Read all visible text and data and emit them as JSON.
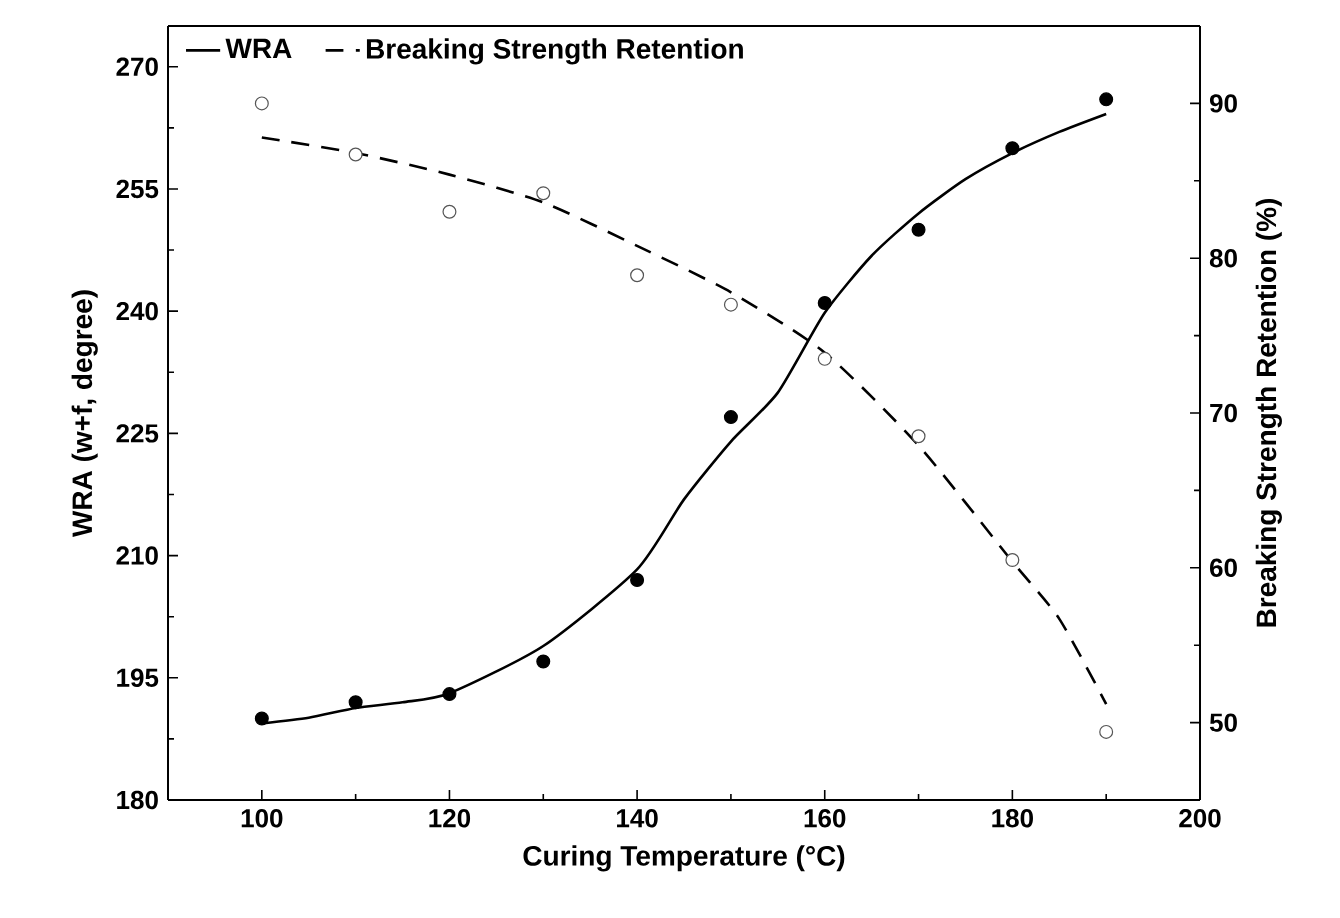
{
  "chart_data": {
    "type": "scatter",
    "xlabel": "Curing Temperature (°C)",
    "ylabel": "WRA (w+f, degree)",
    "y2label": "Breaking Strength Retention (%)",
    "xlim": [
      90,
      200
    ],
    "xticks": [
      100,
      120,
      140,
      160,
      180,
      200
    ],
    "ylim": [
      180,
      275
    ],
    "yticks": [
      180,
      195,
      210,
      225,
      240,
      255,
      270
    ],
    "y2lim": [
      45,
      95
    ],
    "y2ticks": [
      50,
      60,
      70,
      80,
      90
    ],
    "legend": "top left",
    "grid": false,
    "series": [
      {
        "name": "WRA",
        "type": "line",
        "color": "#000000",
        "line_style": "solid",
        "marker": "none",
        "x": [
          100,
          105,
          110,
          115,
          120,
          130,
          140,
          145,
          150,
          155,
          160,
          165,
          170,
          175,
          180,
          185,
          190
        ],
        "values": [
          189.4,
          190.1,
          191.3,
          192,
          193.1,
          198.9,
          208.3,
          216.9,
          224,
          230,
          239.8,
          246.8,
          252,
          256.2,
          259.4,
          262,
          264.2
        ]
      },
      {
        "name": "Breaking Strength Retention",
        "type": "line",
        "axis": "y2",
        "color": "#000000",
        "line_style": "dashed",
        "marker": "none",
        "x": [
          100,
          110,
          120,
          130,
          140,
          150,
          160,
          170,
          180,
          185,
          190
        ],
        "values": [
          87.8,
          86.8,
          85.4,
          83.6,
          80.8,
          77.8,
          73.9,
          67.9,
          60.4,
          56.7,
          51.2
        ]
      },
      {
        "color": "#000000",
        "marker": "circle",
        "x": [
          100,
          110,
          120,
          130,
          140,
          150,
          160,
          170,
          180,
          190
        ],
        "values": [
          190,
          192,
          193,
          197,
          207,
          227,
          241,
          250,
          260,
          266
        ]
      },
      {
        "axis": "y2",
        "color": "#555555",
        "marker": "circle",
        "x": [
          100,
          110,
          120,
          130,
          140,
          150,
          160,
          170,
          180,
          190
        ],
        "values": [
          90,
          86.7,
          83.0,
          84.2,
          78.9,
          77.0,
          73.5,
          68.5,
          60.5,
          49.4
        ]
      }
    ]
  }
}
